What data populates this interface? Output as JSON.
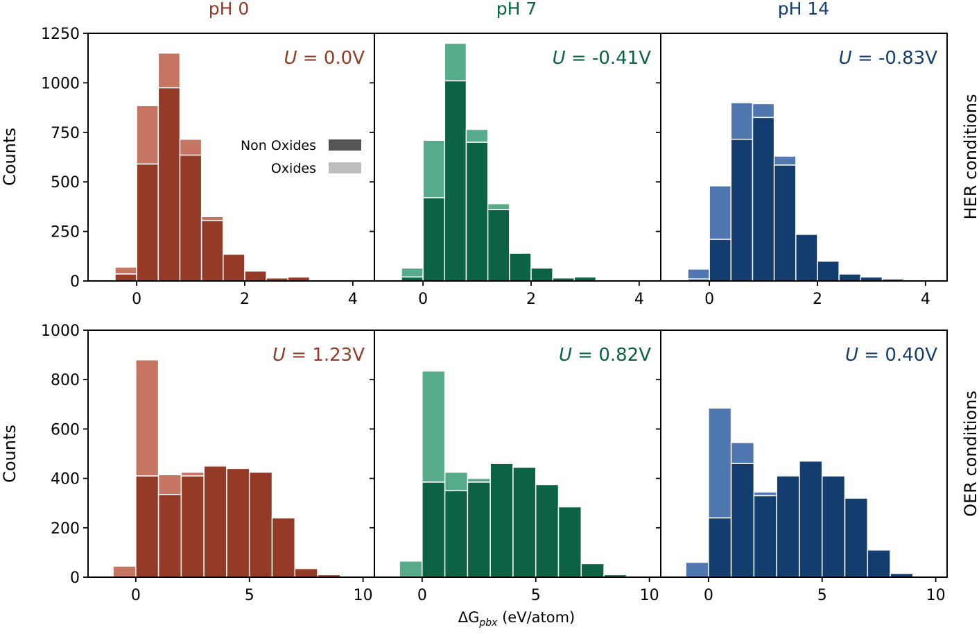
{
  "colors": {
    "pH0": {
      "dark": "#953a26",
      "light": "#c67563",
      "title": "#953a26"
    },
    "pH7": {
      "dark": "#0b6343",
      "light": "#56ac8a",
      "title": "#0b6343"
    },
    "pH14": {
      "dark": "#143d6f",
      "light": "#5077b0",
      "title": "#143d6f"
    }
  },
  "figure": {
    "column_titles": [
      "pH 0",
      "pH 7",
      "pH 14"
    ],
    "row_labels": [
      "HER conditions",
      "OER conditions"
    ],
    "ylabel": "Counts",
    "xlabel_prefix": "ΔG",
    "xlabel_subscript": "pbx",
    "xlabel_suffix": " (eV/atom)",
    "legend": {
      "title": "",
      "entries": [
        "Non Oxides",
        "Oxides"
      ]
    }
  },
  "chart_data": [
    {
      "type": "bar",
      "stacked": true,
      "row": "HER conditions",
      "column": "pH 0",
      "annotation_var": "U",
      "annotation_value": " = 0.0V",
      "xlim": [
        -0.9,
        4.4
      ],
      "ylim": [
        0,
        1250
      ],
      "xticks": [
        0,
        2,
        4
      ],
      "yticks": [
        0,
        250,
        500,
        750,
        1000,
        1250
      ],
      "bin_width": 0.4,
      "bin_centers": [
        -0.2,
        0.2,
        0.6,
        1.0,
        1.4,
        1.8,
        2.2,
        2.6,
        3.0,
        3.4,
        3.8
      ],
      "series": [
        {
          "name": "Non Oxides",
          "values": [
            35,
            590,
            975,
            635,
            305,
            135,
            50,
            15,
            20,
            5,
            2
          ]
        },
        {
          "name": "Oxides",
          "values": [
            35,
            295,
            175,
            80,
            20,
            0,
            0,
            0,
            0,
            0,
            0
          ]
        }
      ]
    },
    {
      "type": "bar",
      "stacked": true,
      "row": "HER conditions",
      "column": "pH 7",
      "annotation_var": "U",
      "annotation_value": " = -0.41V",
      "xlim": [
        -0.9,
        4.4
      ],
      "ylim": [
        0,
        1250
      ],
      "xticks": [
        0,
        2,
        4
      ],
      "yticks": [
        0,
        250,
        500,
        750,
        1000,
        1250
      ],
      "bin_width": 0.4,
      "bin_centers": [
        -0.2,
        0.2,
        0.6,
        1.0,
        1.4,
        1.8,
        2.2,
        2.6,
        3.0,
        3.4,
        3.8
      ],
      "series": [
        {
          "name": "Non Oxides",
          "values": [
            20,
            420,
            1010,
            700,
            360,
            140,
            65,
            15,
            20,
            5,
            2
          ]
        },
        {
          "name": "Oxides",
          "values": [
            45,
            290,
            190,
            65,
            30,
            0,
            0,
            0,
            0,
            0,
            0
          ]
        }
      ]
    },
    {
      "type": "bar",
      "stacked": true,
      "row": "HER conditions",
      "column": "pH 14",
      "annotation_var": "U",
      "annotation_value": " = -0.83V",
      "xlim": [
        -0.9,
        4.4
      ],
      "ylim": [
        0,
        1250
      ],
      "xticks": [
        0,
        2,
        4
      ],
      "yticks": [
        0,
        250,
        500,
        750,
        1000,
        1250
      ],
      "bin_width": 0.4,
      "bin_centers": [
        -0.2,
        0.2,
        0.6,
        1.0,
        1.4,
        1.8,
        2.2,
        2.6,
        3.0,
        3.4,
        3.8
      ],
      "series": [
        {
          "name": "Non Oxides",
          "values": [
            10,
            210,
            715,
            825,
            585,
            235,
            100,
            35,
            20,
            10,
            2
          ]
        },
        {
          "name": "Oxides",
          "values": [
            50,
            270,
            185,
            70,
            45,
            0,
            0,
            0,
            0,
            0,
            0
          ]
        }
      ]
    },
    {
      "type": "bar",
      "stacked": true,
      "row": "OER conditions",
      "column": "pH 0",
      "annotation_var": "U",
      "annotation_value": " = 1.23V",
      "xlim": [
        -2.1,
        10.5
      ],
      "ylim": [
        0,
        1000
      ],
      "xticks": [
        0,
        5,
        10
      ],
      "yticks": [
        0,
        200,
        400,
        600,
        800,
        1000
      ],
      "bin_width": 1.0,
      "bin_centers": [
        -0.5,
        0.5,
        1.5,
        2.5,
        3.5,
        4.5,
        5.5,
        6.5,
        7.5,
        8.5
      ],
      "series": [
        {
          "name": "Non Oxides",
          "values": [
            0,
            410,
            335,
            410,
            450,
            440,
            425,
            240,
            35,
            10
          ]
        },
        {
          "name": "Oxides",
          "values": [
            45,
            470,
            80,
            15,
            5,
            0,
            0,
            0,
            0,
            0
          ]
        }
      ]
    },
    {
      "type": "bar",
      "stacked": true,
      "row": "OER conditions",
      "column": "pH 7",
      "annotation_var": "U",
      "annotation_value": " = 0.82V",
      "xlim": [
        -2.1,
        10.5
      ],
      "ylim": [
        0,
        1000
      ],
      "xticks": [
        0,
        5,
        10
      ],
      "yticks": [
        0,
        200,
        400,
        600,
        800,
        1000
      ],
      "bin_width": 1.0,
      "bin_centers": [
        -0.5,
        0.5,
        1.5,
        2.5,
        3.5,
        4.5,
        5.5,
        6.5,
        7.5,
        8.5
      ],
      "series": [
        {
          "name": "Non Oxides",
          "values": [
            0,
            385,
            350,
            385,
            460,
            445,
            375,
            285,
            55,
            10
          ]
        },
        {
          "name": "Oxides",
          "values": [
            65,
            450,
            75,
            15,
            5,
            0,
            0,
            0,
            0,
            0
          ]
        }
      ]
    },
    {
      "type": "bar",
      "stacked": true,
      "row": "OER conditions",
      "column": "pH 14",
      "annotation_var": "U",
      "annotation_value": " = 0.40V",
      "xlim": [
        -2.1,
        10.5
      ],
      "ylim": [
        0,
        1000
      ],
      "xticks": [
        0,
        5,
        10
      ],
      "yticks": [
        0,
        200,
        400,
        600,
        800,
        1000
      ],
      "bin_width": 1.0,
      "bin_centers": [
        -0.5,
        0.5,
        1.5,
        2.5,
        3.5,
        4.5,
        5.5,
        6.5,
        7.5,
        8.5
      ],
      "series": [
        {
          "name": "Non Oxides",
          "values": [
            0,
            240,
            460,
            330,
            410,
            470,
            410,
            320,
            110,
            15
          ]
        },
        {
          "name": "Oxides",
          "values": [
            60,
            445,
            85,
            15,
            5,
            0,
            0,
            0,
            0,
            0
          ]
        }
      ]
    }
  ]
}
